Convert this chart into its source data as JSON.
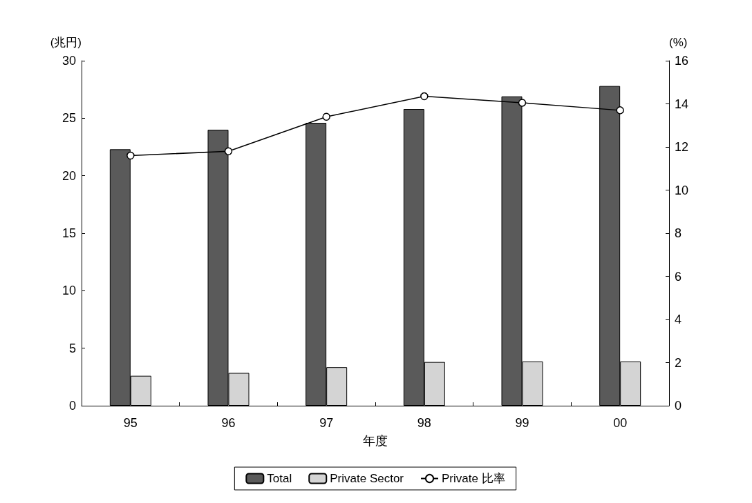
{
  "chart_data": {
    "type": "bar",
    "xlabel": "年度",
    "ylabel": "(兆円)",
    "y2label": "(%)",
    "categories": [
      "95",
      "96",
      "97",
      "98",
      "99",
      "00"
    ],
    "series": [
      {
        "name": "Total",
        "color": "#5a5a5a",
        "values": [
          22.3,
          24.0,
          24.6,
          25.8,
          26.9,
          27.8
        ]
      },
      {
        "name": "Private Sector",
        "color": "#d4d4d4",
        "values": [
          2.6,
          2.85,
          3.35,
          3.8,
          3.85,
          3.85
        ]
      },
      {
        "name": "Private 比率",
        "type": "line",
        "axis": "y2",
        "color": "#000000",
        "values": [
          11.6,
          11.8,
          13.4,
          14.35,
          14.05,
          13.7
        ]
      }
    ],
    "ylim": [
      0,
      30
    ],
    "yticks": [
      0,
      5,
      10,
      15,
      20,
      25,
      30
    ],
    "y2lim": [
      0,
      16
    ],
    "y2ticks": [
      0,
      2,
      4,
      6,
      8,
      10,
      12,
      14,
      16
    ],
    "grid": false,
    "legend": "bottom",
    "marker": "circle",
    "line_style": "solid"
  }
}
